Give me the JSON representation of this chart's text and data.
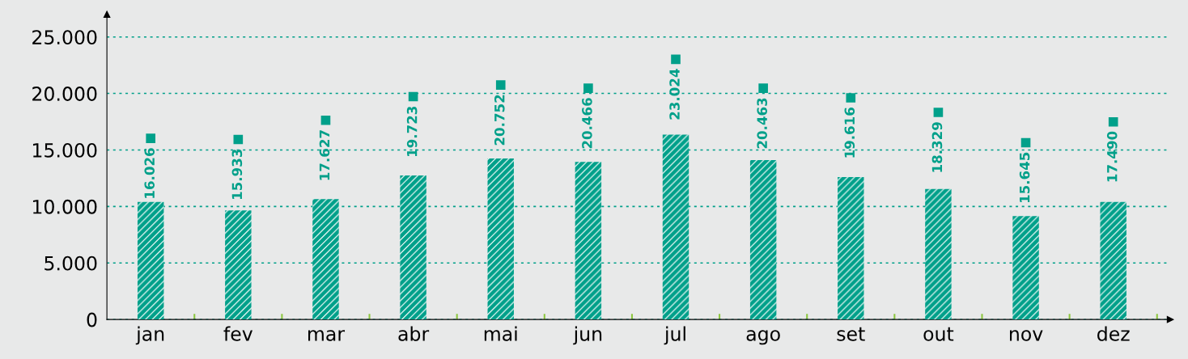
{
  "chart_data": {
    "type": "bar",
    "categories": [
      "jan",
      "fev",
      "mar",
      "abr",
      "mai",
      "jun",
      "jul",
      "ago",
      "set",
      "out",
      "nov",
      "dez"
    ],
    "series": [
      {
        "color": "#00a08a",
        "values": [
          10400,
          9650,
          10650,
          12750,
          14250,
          13950,
          16350,
          14100,
          12600,
          11550,
          9150,
          10400
        ]
      },
      {
        "type": "scatter",
        "marker": "square",
        "color": "#00a08a",
        "values": [
          16026,
          15933,
          17627,
          19723,
          20752,
          20466,
          23024,
          20463,
          19616,
          18329,
          15645,
          17490
        ],
        "value_labels": [
          "16.026",
          "15.933",
          "17.627",
          "19.723",
          "20.752",
          "20.466",
          "23.024",
          "20.463",
          "19.616",
          "18.329",
          "15.645",
          "17.490"
        ]
      }
    ],
    "ylim": [
      0,
      27000
    ],
    "yticks": [
      0,
      {
        "value": 5000,
        "label": "5.000"
      },
      {
        "value": 10000,
        "label": "10.000"
      },
      {
        "value": 15000,
        "label": "15.000"
      },
      {
        "value": 20000,
        "label": "20.000"
      },
      {
        "value": 25000,
        "label": "25.000"
      }
    ],
    "grid": "y"
  }
}
